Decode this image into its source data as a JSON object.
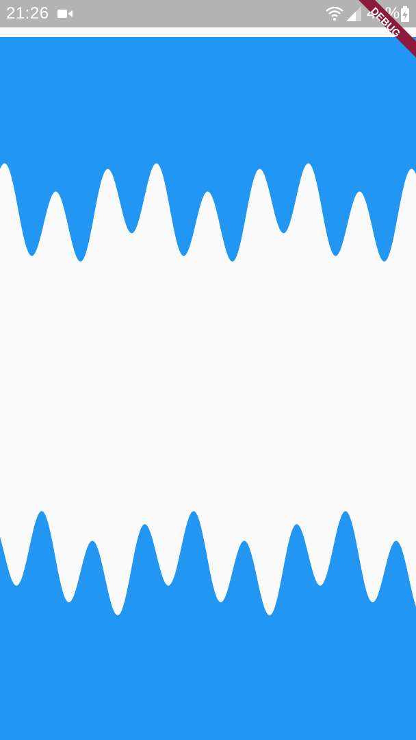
{
  "status_bar": {
    "time": "21:26",
    "battery": "49%",
    "icons": [
      "video-camera-icon",
      "wifi-icon",
      "cell-signal-icon",
      "battery-charging-icon"
    ]
  },
  "debug_banner": {
    "label": "DEBUG",
    "color": "#8b1a3c"
  },
  "colors": {
    "primary": "#2196f3",
    "background": "#fafafa",
    "status_bar": "#b3b3b3"
  }
}
